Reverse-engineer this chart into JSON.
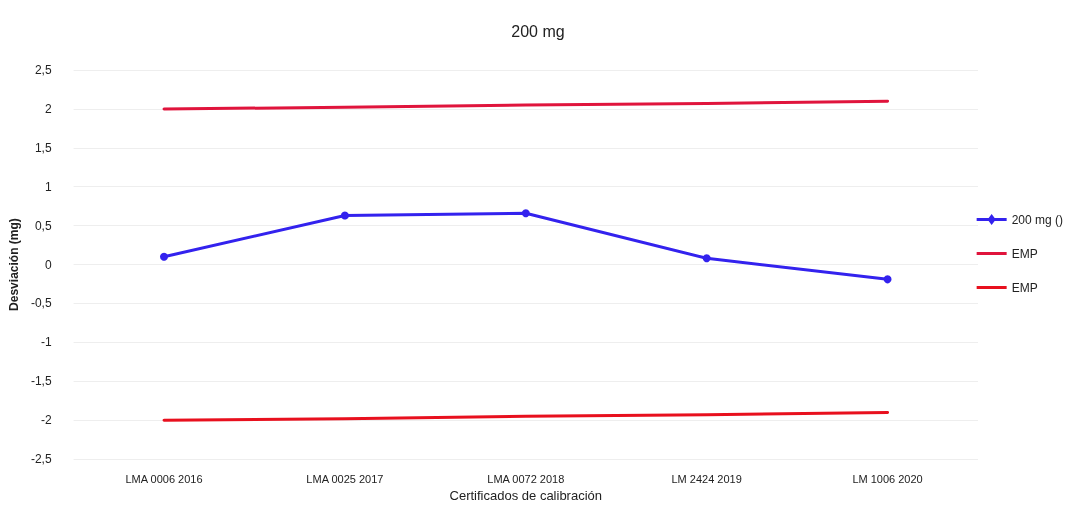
{
  "chart_data": {
    "type": "line",
    "title": "200 mg",
    "xlabel": "Certificados de calibración",
    "ylabel": "Desviación (mg)",
    "categories": [
      "LMA 0006 2016",
      "LMA 0025 2017",
      "LMA 0072 2018",
      "LM 2424 2019",
      "LM 1006 2020"
    ],
    "series": [
      {
        "name": "200 mg ()",
        "color": "#3322ee",
        "marker": "circle",
        "values": [
          0.1,
          0.63,
          0.66,
          0.08,
          -0.19
        ]
      },
      {
        "name": "EMP",
        "color": "#e0143c",
        "marker": "none",
        "values": [
          2.0,
          2.02,
          2.05,
          2.07,
          2.1
        ]
      },
      {
        "name": "EMP",
        "color": "#e8101e",
        "marker": "none",
        "values": [
          -2.0,
          -1.98,
          -1.95,
          -1.93,
          -1.9
        ]
      }
    ],
    "ylim": [
      -2.5,
      2.5
    ],
    "yticks": [
      {
        "value": -2.5,
        "label": "-2,5"
      },
      {
        "value": -2,
        "label": "-2"
      },
      {
        "value": -1.5,
        "label": "-1,5"
      },
      {
        "value": -1,
        "label": "-1"
      },
      {
        "value": -0.5,
        "label": "-0,5"
      },
      0,
      {
        "value": 0.5,
        "label": "0,5"
      },
      1,
      {
        "value": 1.5,
        "label": "1,5"
      },
      2,
      {
        "value": 2.5,
        "label": "2,5"
      }
    ],
    "grid": "y",
    "legend": "right",
    "line_style": "solid"
  }
}
